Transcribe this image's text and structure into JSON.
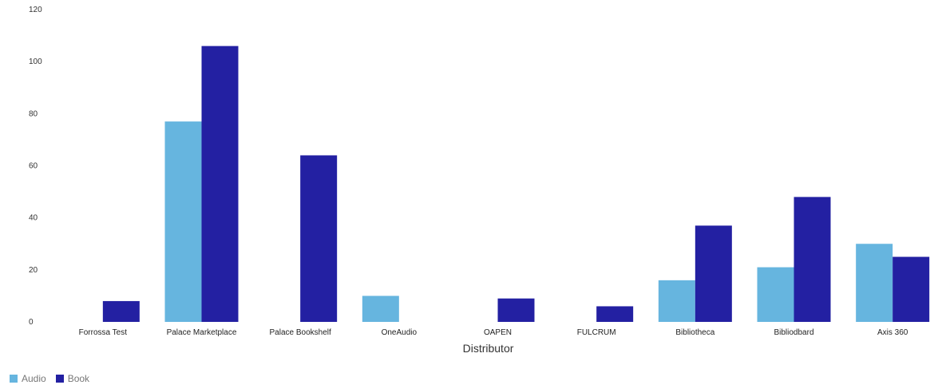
{
  "chart_data": {
    "type": "bar",
    "xlabel": "Distributor",
    "ylabel": "",
    "ylim": [
      0,
      120
    ],
    "yticks": [
      0,
      20,
      40,
      60,
      80,
      100,
      120
    ],
    "categories": [
      "Forrossa Test",
      "Palace Marketplace",
      "Palace Bookshelf",
      "OneAudio",
      "OAPEN",
      "FULCRUM",
      "Bibliotheca",
      "Bibliodbard",
      "Axis 360"
    ],
    "series": [
      {
        "name": "Audio",
        "color": "#66b5df",
        "values": [
          0,
          77,
          0,
          10,
          0,
          0,
          16,
          21,
          30
        ]
      },
      {
        "name": "Book",
        "color": "#2320a2",
        "values": [
          8,
          106,
          64,
          0,
          9,
          6,
          37,
          48,
          25
        ]
      }
    ],
    "grid": false,
    "legend_position": "bottom-left"
  }
}
